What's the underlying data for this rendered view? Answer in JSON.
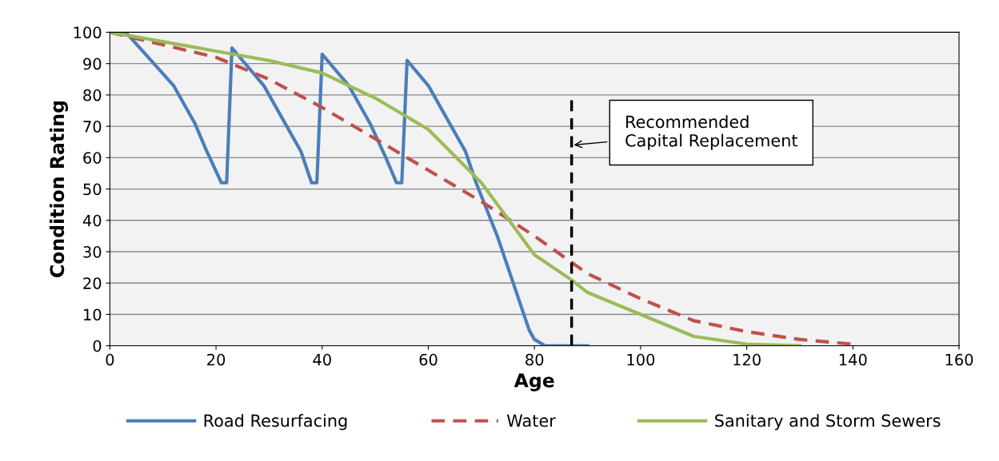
{
  "chart_data": {
    "type": "line",
    "xlabel": "Age",
    "ylabel": "Condition Rating",
    "xlim": [
      0,
      160
    ],
    "xticks": [
      0,
      20,
      40,
      60,
      80,
      100,
      120,
      140,
      160
    ],
    "ylim": [
      0,
      100
    ],
    "yticks": [
      0,
      10,
      20,
      30,
      40,
      50,
      60,
      70,
      80,
      90,
      100
    ],
    "grid": "y",
    "legend": "bottom",
    "marker": "none",
    "series": [
      {
        "name": "Road Resurfacing",
        "color": "#4a7ebb",
        "line_style": "solid",
        "x": [
          0,
          3,
          12,
          16,
          18,
          21,
          22,
          23,
          29,
          33,
          36,
          38,
          39,
          40,
          45,
          49,
          52,
          54,
          55,
          56,
          60,
          64,
          67,
          69,
          73,
          77,
          79,
          80,
          82,
          90
        ],
        "values": [
          100,
          100,
          83,
          71,
          63,
          52,
          52,
          95,
          83,
          71,
          62,
          52,
          52,
          93,
          83,
          71,
          60,
          52,
          52,
          91,
          83,
          71,
          62,
          52,
          35,
          15,
          5,
          2,
          0,
          0
        ]
      },
      {
        "name": "Water",
        "color": "#c0504d",
        "line_style": "dashed",
        "x": [
          0,
          10,
          20,
          30,
          40,
          50,
          60,
          70,
          80,
          90,
          100,
          110,
          120,
          130,
          140
        ],
        "values": [
          100,
          96,
          92,
          85,
          76,
          66,
          56,
          46,
          35,
          23,
          15,
          8,
          4.5,
          2,
          0.5
        ]
      },
      {
        "name": "Sanitary and Storm Sewers",
        "color": "#9bbb59",
        "line_style": "solid",
        "x": [
          0,
          10,
          20,
          30,
          40,
          50,
          60,
          70,
          80,
          87,
          90,
          100,
          110,
          120,
          130
        ],
        "values": [
          100,
          97,
          94,
          91,
          87,
          79,
          69,
          52,
          29,
          21,
          17,
          10,
          3,
          0.5,
          0
        ]
      }
    ],
    "ref_lines": [
      {
        "axis": "x",
        "value": 87,
        "color": "#000000",
        "line_style": "dashed"
      }
    ],
    "annotations": [
      {
        "text": "Recommended\nCapital Replacement",
        "x": 87,
        "y": 64
      }
    ]
  }
}
